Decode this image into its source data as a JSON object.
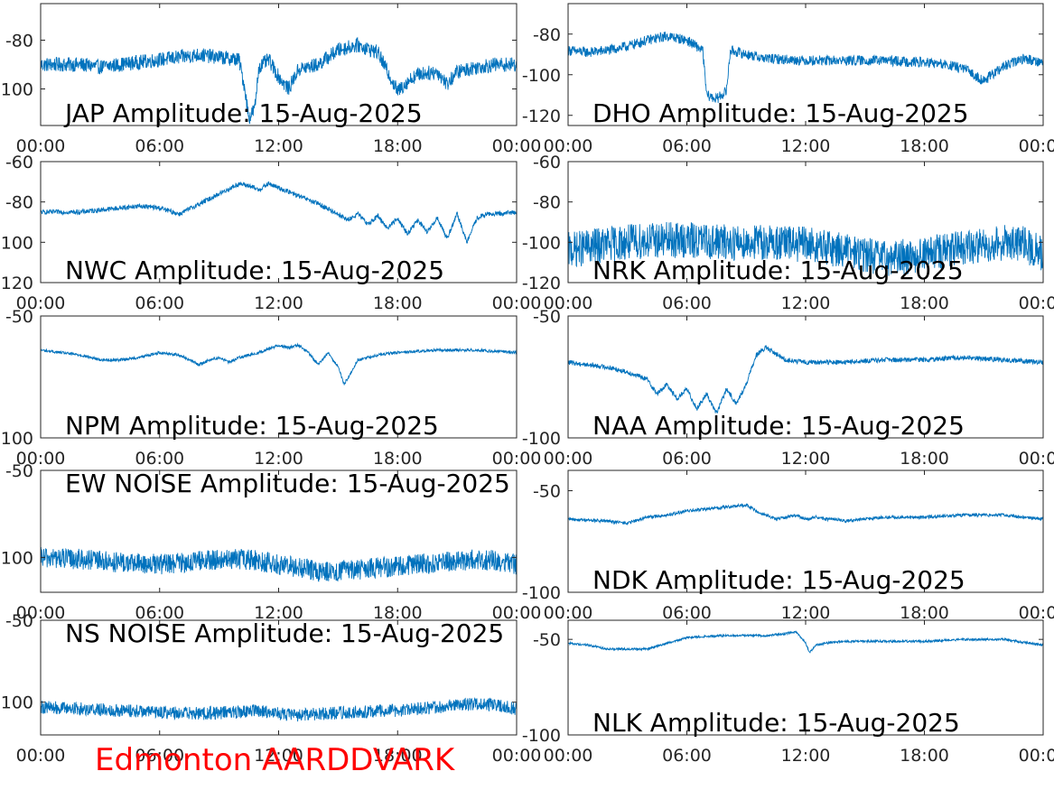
{
  "figure": {
    "footer": "Edmonton AARDDVARK",
    "footer_color": "#ff0000",
    "line_color": "#0072bd"
  },
  "chart_data": [
    {
      "type": "line",
      "title": "JAP Amplitude: 15-Aug-2025",
      "xlim": [
        "00:00",
        "24:00"
      ],
      "ylim": [
        -115,
        -65
      ],
      "x_ticks": [
        "00:00",
        "06:00",
        "12:00",
        "18:00",
        "00:00"
      ],
      "y_ticks": [
        {
          "value": -80,
          "label": "-80"
        },
        {
          "value": -100,
          "label": "-100"
        }
      ],
      "grid": false,
      "series": [
        {
          "x_hours": [
            0,
            1,
            2,
            3,
            4,
            5,
            6,
            7,
            8,
            9,
            10,
            10.3,
            10.5,
            10.8,
            11,
            11.5,
            12,
            12.5,
            13,
            14,
            15,
            16,
            17,
            17.5,
            18,
            18.5,
            19,
            20,
            20.5,
            21,
            22,
            23,
            24
          ],
          "y": [
            -90,
            -90,
            -90,
            -91,
            -90,
            -89,
            -88,
            -87,
            -86,
            -87,
            -88,
            -100,
            -112,
            -108,
            -91,
            -88,
            -95,
            -100,
            -92,
            -90,
            -84,
            -82,
            -85,
            -93,
            -101,
            -97,
            -94,
            -93,
            -98,
            -93,
            -91,
            -90,
            -90
          ],
          "noise": 3
        }
      ]
    },
    {
      "type": "line",
      "title": "DHO Amplitude: 15-Aug-2025",
      "xlim": [
        "00:00",
        "24:00"
      ],
      "ylim": [
        -125,
        -65
      ],
      "x_ticks": [
        "00:00",
        "06:00",
        "12:00",
        "18:00",
        "00:00"
      ],
      "y_ticks": [
        {
          "value": -80,
          "label": "-80"
        },
        {
          "value": -100,
          "label": "-100"
        },
        {
          "value": -120,
          "label": "-120"
        }
      ],
      "grid": false,
      "series": [
        {
          "x_hours": [
            0,
            1,
            2,
            3,
            4,
            5,
            6,
            6.8,
            7.0,
            7.5,
            8.0,
            8.2,
            9,
            10,
            12,
            14,
            16,
            18,
            19,
            20,
            21,
            22,
            23,
            24
          ],
          "y": [
            -88,
            -89,
            -88,
            -86,
            -83,
            -81,
            -83,
            -88,
            -110,
            -112,
            -108,
            -88,
            -90,
            -92,
            -93,
            -93,
            -93,
            -94,
            -95,
            -97,
            -103,
            -96,
            -92,
            -94
          ],
          "noise": 2.5
        }
      ]
    },
    {
      "type": "line",
      "title": "NWC Amplitude: 15-Aug-2025",
      "xlim": [
        "00:00",
        "24:00"
      ],
      "ylim": [
        -120,
        -60
      ],
      "x_ticks": [
        "00:00",
        "06:00",
        "12:00",
        "18:00",
        "00:00"
      ],
      "y_ticks": [
        {
          "value": -60,
          "label": "-60"
        },
        {
          "value": -80,
          "label": "-80"
        },
        {
          "value": -100,
          "label": "-100"
        },
        {
          "value": -120,
          "label": "-120"
        }
      ],
      "grid": false,
      "series": [
        {
          "x_hours": [
            0,
            2,
            3,
            4,
            5,
            6,
            7,
            8,
            9,
            10,
            10.5,
            11,
            11.5,
            12,
            13,
            14,
            15,
            15.5,
            16,
            16.5,
            17,
            17.5,
            18,
            18.5,
            19,
            19.5,
            20,
            20.5,
            21,
            21.5,
            22,
            22.5,
            23,
            24
          ],
          "y": [
            -85,
            -85,
            -84,
            -83,
            -82,
            -83,
            -86,
            -81,
            -76,
            -71,
            -72,
            -74,
            -71,
            -73,
            -77,
            -81,
            -86,
            -89,
            -86,
            -91,
            -87,
            -93,
            -88,
            -96,
            -89,
            -95,
            -88,
            -98,
            -86,
            -100,
            -88,
            -86,
            -86,
            -85
          ],
          "noise": 1.2
        }
      ]
    },
    {
      "type": "line",
      "title": "NRK Amplitude: 15-Aug-2025",
      "xlim": [
        "00:00",
        "24:00"
      ],
      "ylim": [
        -120,
        -60
      ],
      "x_ticks": [
        "00:00",
        "06:00",
        "12:00",
        "18:00",
        "00:00"
      ],
      "y_ticks": [
        {
          "value": -60,
          "label": "-60"
        },
        {
          "value": -80,
          "label": "-80"
        },
        {
          "value": -100,
          "label": "-100"
        },
        {
          "value": -120,
          "label": "-120"
        }
      ],
      "grid": false,
      "series": [
        {
          "x_hours": [
            0,
            2,
            4,
            6,
            8,
            10,
            12,
            14,
            16,
            18,
            20,
            22,
            23,
            24
          ],
          "y": [
            -104,
            -101,
            -99,
            -99,
            -100,
            -100,
            -101,
            -104,
            -108,
            -106,
            -103,
            -100,
            -101,
            -106
          ],
          "noise": 9
        }
      ]
    },
    {
      "type": "line",
      "title": "NPM Amplitude: 15-Aug-2025",
      "xlim": [
        "00:00",
        "24:00"
      ],
      "ylim": [
        -100,
        -50
      ],
      "x_ticks": [
        "00:00",
        "06:00",
        "12:00",
        "18:00",
        "00:00"
      ],
      "y_ticks": [
        {
          "value": -50,
          "label": "-50"
        },
        {
          "value": -100,
          "label": "-100"
        }
      ],
      "grid": false,
      "series": [
        {
          "x_hours": [
            0,
            1,
            2,
            3,
            4,
            5,
            6,
            7,
            8,
            8.5,
            9,
            9.5,
            10,
            11,
            12,
            12.5,
            13,
            13.5,
            14,
            14.5,
            15,
            15.3,
            15.6,
            16,
            17,
            18,
            20,
            22,
            24
          ],
          "y": [
            -64,
            -65,
            -66,
            -68,
            -68,
            -67,
            -65,
            -66,
            -70,
            -68,
            -67,
            -69,
            -67,
            -65,
            -62,
            -63,
            -62,
            -65,
            -70,
            -65,
            -71,
            -78,
            -74,
            -68,
            -66,
            -65,
            -64,
            -64,
            -65
          ],
          "noise": 0.6
        }
      ]
    },
    {
      "type": "line",
      "title": "NAA Amplitude: 15-Aug-2025",
      "xlim": [
        "00:00",
        "24:00"
      ],
      "ylim": [
        -100,
        -50
      ],
      "x_ticks": [
        "00:00",
        "06:00",
        "12:00",
        "18:00",
        "00:00"
      ],
      "y_ticks": [
        {
          "value": -50,
          "label": "-50"
        },
        {
          "value": -100,
          "label": "-100"
        }
      ],
      "grid": false,
      "series": [
        {
          "x_hours": [
            0,
            1,
            2,
            3,
            4,
            4.5,
            5,
            5.5,
            6,
            6.5,
            7,
            7.5,
            8,
            8.5,
            9,
            9.5,
            10,
            11,
            12,
            14,
            16,
            18,
            20,
            22,
            24
          ],
          "y": [
            -69,
            -70,
            -71,
            -73,
            -76,
            -82,
            -78,
            -84,
            -80,
            -88,
            -82,
            -90,
            -80,
            -86,
            -78,
            -66,
            -63,
            -68,
            -69,
            -69,
            -68,
            -68,
            -67,
            -68,
            -69
          ],
          "noise": 1
        }
      ]
    },
    {
      "type": "line",
      "title": "EW NOISE Amplitude: 15-Aug-2025",
      "xlim": [
        "00:00",
        "24:00"
      ],
      "ylim": [
        -120,
        -50
      ],
      "x_ticks": [
        "00:00",
        "06:00",
        "12:00",
        "18:00",
        "00:00"
      ],
      "y_ticks": [
        {
          "value": -50,
          "label": "-50"
        },
        {
          "value": -100,
          "label": "-100"
        }
      ],
      "grid": false,
      "series": [
        {
          "x_hours": [
            0,
            2,
            4,
            6,
            8,
            10,
            11,
            12,
            13,
            14,
            16,
            18,
            20,
            22,
            23,
            24
          ],
          "y": [
            -100,
            -101,
            -103,
            -104,
            -102,
            -101,
            -102,
            -104,
            -106,
            -108,
            -107,
            -105,
            -103,
            -101,
            -102,
            -104
          ],
          "noise": 6
        }
      ]
    },
    {
      "type": "line",
      "title": "NDK Amplitude: 15-Aug-2025",
      "xlim": [
        "00:00",
        "24:00"
      ],
      "ylim": [
        -100,
        -40
      ],
      "x_ticks": [
        "00:00",
        "06:00",
        "12:00",
        "18:00",
        "00:00"
      ],
      "y_ticks": [
        {
          "value": -50,
          "label": "-50"
        },
        {
          "value": -100,
          "label": "-100"
        }
      ],
      "grid": false,
      "series": [
        {
          "x_hours": [
            0,
            2,
            3,
            4,
            5,
            6,
            8,
            9,
            9.5,
            10,
            10.5,
            11,
            11.5,
            12,
            12.5,
            13,
            13.5,
            14,
            16,
            18,
            20,
            22,
            24
          ],
          "y": [
            -64,
            -65,
            -66,
            -63,
            -62,
            -60,
            -58,
            -57,
            -60,
            -62,
            -64,
            -63,
            -62,
            -64,
            -63,
            -64,
            -64,
            -65,
            -63,
            -63,
            -62,
            -62,
            -64
          ],
          "noise": 0.8
        }
      ]
    },
    {
      "type": "line",
      "title": "NS NOISE Amplitude: 15-Aug-2025",
      "xlim": [
        "00:00",
        "24:00"
      ],
      "ylim": [
        -120,
        -50
      ],
      "x_ticks": [
        "00:00",
        "06:00",
        "12:00",
        "18:00",
        "00:00"
      ],
      "y_ticks": [
        {
          "value": -50,
          "label": "-50"
        },
        {
          "value": -100,
          "label": "-100"
        }
      ],
      "grid": false,
      "series": [
        {
          "x_hours": [
            0,
            2,
            4,
            6,
            8,
            10,
            11,
            12,
            13,
            14,
            16,
            18,
            20,
            22,
            23,
            24
          ],
          "y": [
            -103,
            -104,
            -105,
            -106,
            -107,
            -106,
            -105,
            -107,
            -108,
            -107,
            -106,
            -105,
            -103,
            -101,
            -102,
            -104
          ],
          "noise": 4
        }
      ]
    },
    {
      "type": "line",
      "title": "NLK Amplitude: 15-Aug-2025",
      "xlim": [
        "00:00",
        "24:00"
      ],
      "ylim": [
        -100,
        -40
      ],
      "x_ticks": [
        "00:00",
        "06:00",
        "12:00",
        "18:00",
        "00:00"
      ],
      "y_ticks": [
        {
          "value": -50,
          "label": "-50"
        },
        {
          "value": -100,
          "label": "-100"
        }
      ],
      "grid": false,
      "series": [
        {
          "x_hours": [
            0,
            1,
            2,
            3,
            4,
            5,
            6,
            8,
            10,
            11,
            11.5,
            12,
            12.2,
            12.5,
            13,
            14,
            16,
            18,
            20,
            22,
            24
          ],
          "y": [
            -52,
            -53,
            -55,
            -55,
            -55,
            -52,
            -49,
            -48,
            -48,
            -47,
            -46,
            -52,
            -57,
            -53,
            -52,
            -51,
            -51,
            -51,
            -50,
            -50,
            -53
          ],
          "noise": 0.6
        }
      ]
    }
  ]
}
